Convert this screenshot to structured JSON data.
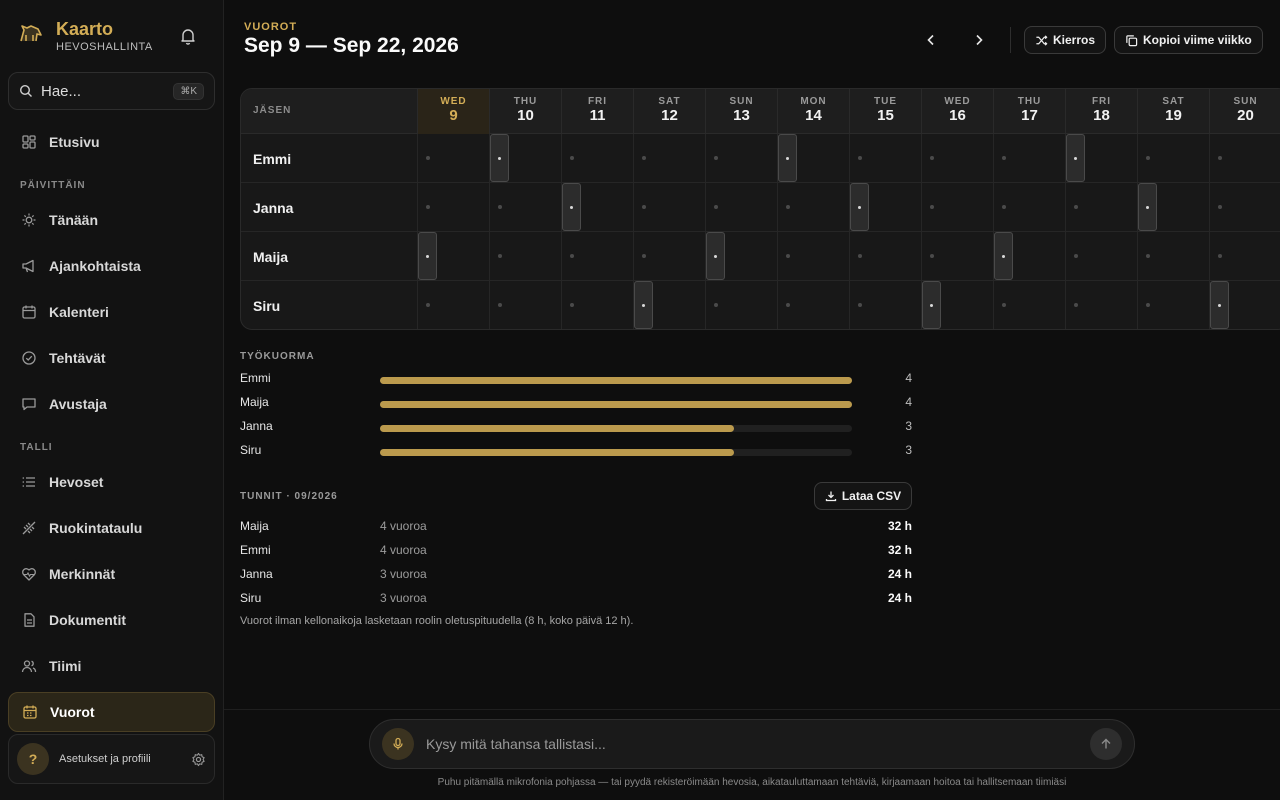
{
  "brand": {
    "name": "Kaarto",
    "subtitle": "HEVOSHALLINTA",
    "accent": "#d3ad56"
  },
  "search": {
    "placeholder": "Hae...",
    "shortcut": "⌘K"
  },
  "nav": {
    "home": {
      "label": "Etusivu",
      "icon": "grid-icon"
    },
    "section_daily": "PÄIVITTÄIN",
    "daily": [
      {
        "label": "Tänään",
        "icon": "sun-icon"
      },
      {
        "label": "Ajankohtaista",
        "icon": "megaphone-icon"
      },
      {
        "label": "Kalenteri",
        "icon": "calendar-icon"
      },
      {
        "label": "Tehtävät",
        "icon": "check-circle-icon"
      },
      {
        "label": "Avustaja",
        "icon": "chat-icon"
      }
    ],
    "section_stable": "TALLI",
    "stable": [
      {
        "label": "Hevoset",
        "icon": "list-icon"
      },
      {
        "label": "Ruokintataulu",
        "icon": "wheat-icon"
      },
      {
        "label": "Merkinnät",
        "icon": "heart-pulse-icon"
      },
      {
        "label": "Dokumentit",
        "icon": "document-icon"
      },
      {
        "label": "Tiimi",
        "icon": "users-icon"
      },
      {
        "label": "Vuorot",
        "icon": "calendar-icon",
        "active": true
      }
    ]
  },
  "profile": {
    "avatar": "?",
    "label": "Asetukset ja profiili"
  },
  "header": {
    "eyebrow": "VUOROT",
    "title": "Sep 9 — Sep 22, 2026",
    "rotation_label": "Kierros",
    "copy_label": "Kopioi viime viikko"
  },
  "schedule": {
    "member_header": "JÄSEN",
    "days": [
      {
        "dow": "WED",
        "num": "9",
        "today": true
      },
      {
        "dow": "THU",
        "num": "10"
      },
      {
        "dow": "FRI",
        "num": "11"
      },
      {
        "dow": "SAT",
        "num": "12"
      },
      {
        "dow": "SUN",
        "num": "13"
      },
      {
        "dow": "MON",
        "num": "14"
      },
      {
        "dow": "TUE",
        "num": "15"
      },
      {
        "dow": "WED",
        "num": "16"
      },
      {
        "dow": "THU",
        "num": "17"
      },
      {
        "dow": "FRI",
        "num": "18"
      },
      {
        "dow": "SAT",
        "num": "19"
      },
      {
        "dow": "SUN",
        "num": "20"
      }
    ],
    "members": [
      {
        "name": "Emmi",
        "shift_days": [
          1,
          5,
          9
        ]
      },
      {
        "name": "Janna",
        "shift_days": [
          2,
          6,
          10
        ]
      },
      {
        "name": "Maija",
        "shift_days": [
          0,
          4,
          8
        ]
      },
      {
        "name": "Siru",
        "shift_days": [
          3,
          7,
          11
        ]
      }
    ]
  },
  "workload": {
    "title": "TYÖKUORMA",
    "max": 4,
    "rows": [
      {
        "name": "Emmi",
        "value": 4
      },
      {
        "name": "Maija",
        "value": 4
      },
      {
        "name": "Janna",
        "value": 3
      },
      {
        "name": "Siru",
        "value": 3
      }
    ]
  },
  "hours": {
    "title": "TUNNIT · 09/2026",
    "csv_label": "Lataa CSV",
    "rows": [
      {
        "name": "Maija",
        "shifts": "4 vuoroa",
        "hours": "32 h"
      },
      {
        "name": "Emmi",
        "shifts": "4 vuoroa",
        "hours": "32 h"
      },
      {
        "name": "Janna",
        "shifts": "3 vuoroa",
        "hours": "24 h"
      },
      {
        "name": "Siru",
        "shifts": "3 vuoroa",
        "hours": "24 h"
      }
    ],
    "footnote": "Vuorot ilman kellonaikoja lasketaan roolin oletuspituudella (8 h, koko päivä 12 h)."
  },
  "ask": {
    "placeholder": "Kysy mitä tahansa tallistasi...",
    "hint": "Puhu pitämällä mikrofonia pohjassa — tai pyydä rekisteröimään hevosia, aikatauluttamaan tehtäviä, kirjaamaan hoitoa tai hallitsemaan tiimiäsi"
  }
}
